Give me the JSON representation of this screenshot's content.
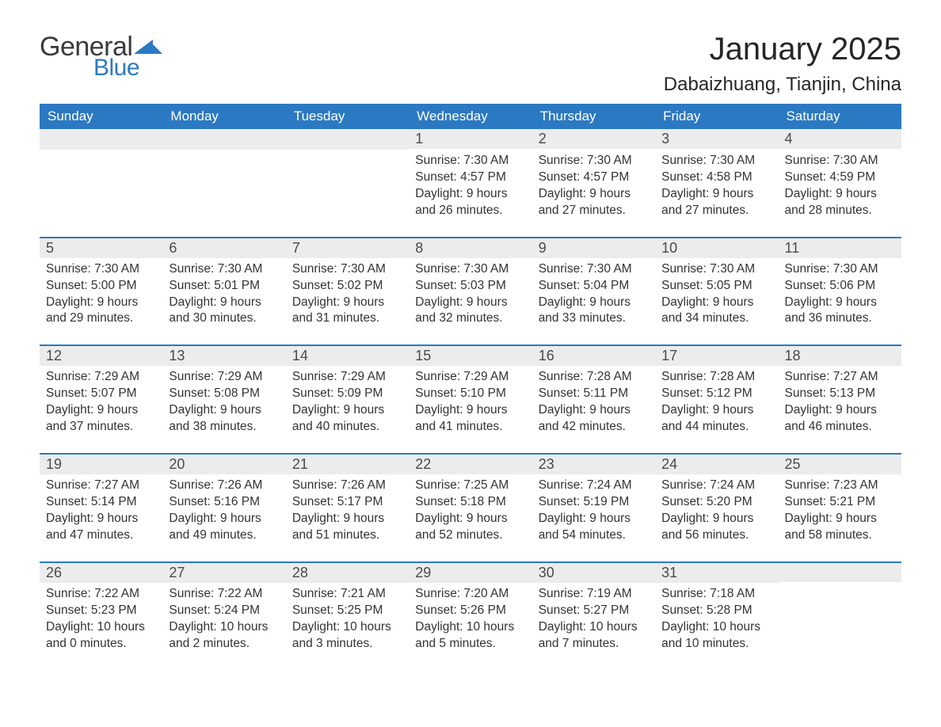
{
  "logo": {
    "text_general": "General",
    "text_blue": "Blue",
    "general_color": "#3a3a3a",
    "blue_color": "#2b79c2"
  },
  "header": {
    "month_title": "January 2025",
    "location": "Dabaizhuang, Tianjin, China"
  },
  "colors": {
    "header_bg": "#2b79c2",
    "header_text": "#ffffff",
    "daynum_bg": "#ececec",
    "daynum_border": "#2b79c2",
    "body_text": "#333333",
    "page_bg": "#ffffff"
  },
  "weekdays": [
    "Sunday",
    "Monday",
    "Tuesday",
    "Wednesday",
    "Thursday",
    "Friday",
    "Saturday"
  ],
  "weeks": [
    [
      {
        "n": "",
        "sunrise": "",
        "sunset": "",
        "daylight": ""
      },
      {
        "n": "",
        "sunrise": "",
        "sunset": "",
        "daylight": ""
      },
      {
        "n": "",
        "sunrise": "",
        "sunset": "",
        "daylight": ""
      },
      {
        "n": "1",
        "sunrise": "Sunrise: 7:30 AM",
        "sunset": "Sunset: 4:57 PM",
        "daylight": "Daylight: 9 hours and 26 minutes."
      },
      {
        "n": "2",
        "sunrise": "Sunrise: 7:30 AM",
        "sunset": "Sunset: 4:57 PM",
        "daylight": "Daylight: 9 hours and 27 minutes."
      },
      {
        "n": "3",
        "sunrise": "Sunrise: 7:30 AM",
        "sunset": "Sunset: 4:58 PM",
        "daylight": "Daylight: 9 hours and 27 minutes."
      },
      {
        "n": "4",
        "sunrise": "Sunrise: 7:30 AM",
        "sunset": "Sunset: 4:59 PM",
        "daylight": "Daylight: 9 hours and 28 minutes."
      }
    ],
    [
      {
        "n": "5",
        "sunrise": "Sunrise: 7:30 AM",
        "sunset": "Sunset: 5:00 PM",
        "daylight": "Daylight: 9 hours and 29 minutes."
      },
      {
        "n": "6",
        "sunrise": "Sunrise: 7:30 AM",
        "sunset": "Sunset: 5:01 PM",
        "daylight": "Daylight: 9 hours and 30 minutes."
      },
      {
        "n": "7",
        "sunrise": "Sunrise: 7:30 AM",
        "sunset": "Sunset: 5:02 PM",
        "daylight": "Daylight: 9 hours and 31 minutes."
      },
      {
        "n": "8",
        "sunrise": "Sunrise: 7:30 AM",
        "sunset": "Sunset: 5:03 PM",
        "daylight": "Daylight: 9 hours and 32 minutes."
      },
      {
        "n": "9",
        "sunrise": "Sunrise: 7:30 AM",
        "sunset": "Sunset: 5:04 PM",
        "daylight": "Daylight: 9 hours and 33 minutes."
      },
      {
        "n": "10",
        "sunrise": "Sunrise: 7:30 AM",
        "sunset": "Sunset: 5:05 PM",
        "daylight": "Daylight: 9 hours and 34 minutes."
      },
      {
        "n": "11",
        "sunrise": "Sunrise: 7:30 AM",
        "sunset": "Sunset: 5:06 PM",
        "daylight": "Daylight: 9 hours and 36 minutes."
      }
    ],
    [
      {
        "n": "12",
        "sunrise": "Sunrise: 7:29 AM",
        "sunset": "Sunset: 5:07 PM",
        "daylight": "Daylight: 9 hours and 37 minutes."
      },
      {
        "n": "13",
        "sunrise": "Sunrise: 7:29 AM",
        "sunset": "Sunset: 5:08 PM",
        "daylight": "Daylight: 9 hours and 38 minutes."
      },
      {
        "n": "14",
        "sunrise": "Sunrise: 7:29 AM",
        "sunset": "Sunset: 5:09 PM",
        "daylight": "Daylight: 9 hours and 40 minutes."
      },
      {
        "n": "15",
        "sunrise": "Sunrise: 7:29 AM",
        "sunset": "Sunset: 5:10 PM",
        "daylight": "Daylight: 9 hours and 41 minutes."
      },
      {
        "n": "16",
        "sunrise": "Sunrise: 7:28 AM",
        "sunset": "Sunset: 5:11 PM",
        "daylight": "Daylight: 9 hours and 42 minutes."
      },
      {
        "n": "17",
        "sunrise": "Sunrise: 7:28 AM",
        "sunset": "Sunset: 5:12 PM",
        "daylight": "Daylight: 9 hours and 44 minutes."
      },
      {
        "n": "18",
        "sunrise": "Sunrise: 7:27 AM",
        "sunset": "Sunset: 5:13 PM",
        "daylight": "Daylight: 9 hours and 46 minutes."
      }
    ],
    [
      {
        "n": "19",
        "sunrise": "Sunrise: 7:27 AM",
        "sunset": "Sunset: 5:14 PM",
        "daylight": "Daylight: 9 hours and 47 minutes."
      },
      {
        "n": "20",
        "sunrise": "Sunrise: 7:26 AM",
        "sunset": "Sunset: 5:16 PM",
        "daylight": "Daylight: 9 hours and 49 minutes."
      },
      {
        "n": "21",
        "sunrise": "Sunrise: 7:26 AM",
        "sunset": "Sunset: 5:17 PM",
        "daylight": "Daylight: 9 hours and 51 minutes."
      },
      {
        "n": "22",
        "sunrise": "Sunrise: 7:25 AM",
        "sunset": "Sunset: 5:18 PM",
        "daylight": "Daylight: 9 hours and 52 minutes."
      },
      {
        "n": "23",
        "sunrise": "Sunrise: 7:24 AM",
        "sunset": "Sunset: 5:19 PM",
        "daylight": "Daylight: 9 hours and 54 minutes."
      },
      {
        "n": "24",
        "sunrise": "Sunrise: 7:24 AM",
        "sunset": "Sunset: 5:20 PM",
        "daylight": "Daylight: 9 hours and 56 minutes."
      },
      {
        "n": "25",
        "sunrise": "Sunrise: 7:23 AM",
        "sunset": "Sunset: 5:21 PM",
        "daylight": "Daylight: 9 hours and 58 minutes."
      }
    ],
    [
      {
        "n": "26",
        "sunrise": "Sunrise: 7:22 AM",
        "sunset": "Sunset: 5:23 PM",
        "daylight": "Daylight: 10 hours and 0 minutes."
      },
      {
        "n": "27",
        "sunrise": "Sunrise: 7:22 AM",
        "sunset": "Sunset: 5:24 PM",
        "daylight": "Daylight: 10 hours and 2 minutes."
      },
      {
        "n": "28",
        "sunrise": "Sunrise: 7:21 AM",
        "sunset": "Sunset: 5:25 PM",
        "daylight": "Daylight: 10 hours and 3 minutes."
      },
      {
        "n": "29",
        "sunrise": "Sunrise: 7:20 AM",
        "sunset": "Sunset: 5:26 PM",
        "daylight": "Daylight: 10 hours and 5 minutes."
      },
      {
        "n": "30",
        "sunrise": "Sunrise: 7:19 AM",
        "sunset": "Sunset: 5:27 PM",
        "daylight": "Daylight: 10 hours and 7 minutes."
      },
      {
        "n": "31",
        "sunrise": "Sunrise: 7:18 AM",
        "sunset": "Sunset: 5:28 PM",
        "daylight": "Daylight: 10 hours and 10 minutes."
      },
      {
        "n": "",
        "sunrise": "",
        "sunset": "",
        "daylight": ""
      }
    ]
  ]
}
